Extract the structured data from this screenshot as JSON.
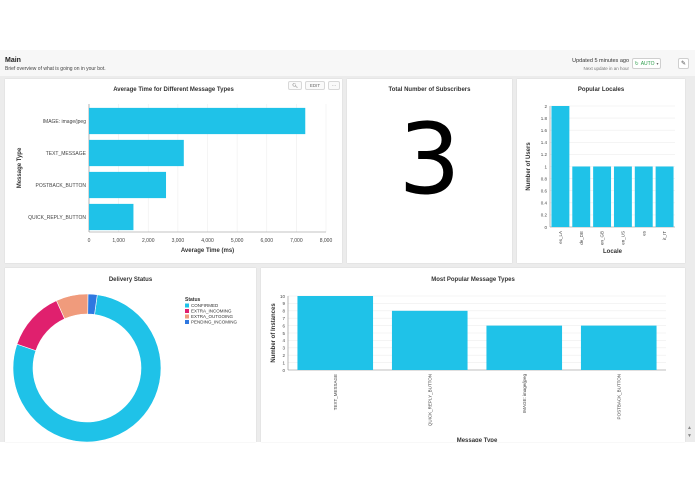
{
  "header": {
    "title": "Main",
    "subtitle": "Brief overview of what is going on in your bot.",
    "updated": "Updated 5 minutes ago",
    "next_update": "Next update in an hour",
    "auto_label": "AUTO"
  },
  "colors": {
    "bar": "#1fc2e8",
    "confirmed": "#1fc2e8",
    "extra_incoming": "#e0206e",
    "extra_outgoing": "#f09b7c",
    "pending_incoming": "#2f78e0"
  },
  "toolbar": {
    "edit_label": "EDIT",
    "more_label": "···"
  },
  "panels": {
    "avg_time_title": "Average Time for Different Message Types",
    "subscribers_title": "Total Number of Subscribers",
    "subscribers_value": "3",
    "locales_title": "Popular Locales",
    "delivery_title": "Delivery Status",
    "popular_types_title": "Most Popular Message Types"
  },
  "chart_data": [
    {
      "type": "bar",
      "orientation": "horizontal",
      "title": "Average Time for Different Message Types",
      "categories": [
        "IMAGE: image/jpeg",
        "TEXT_MESSAGE",
        "POSTBACK_BUTTON",
        "QUICK_REPLY_BUTTON"
      ],
      "values": [
        7300,
        3200,
        2600,
        1500
      ],
      "xlabel": "Average Time (ms)",
      "ylabel": "Message Type",
      "xlim": [
        0,
        8000
      ],
      "xticks": [
        "0",
        "1,000",
        "2,000",
        "3,000",
        "4,000",
        "5,000",
        "6,000",
        "7,000",
        "8,000"
      ],
      "grid": true
    },
    {
      "type": "bar",
      "title": "Popular Locales",
      "categories": [
        "es_LA",
        "de_DE",
        "en_GB",
        "en_US",
        "es",
        "it_IT"
      ],
      "values": [
        2,
        1,
        1,
        1,
        1,
        1
      ],
      "xlabel": "Locale",
      "ylabel": "Number of Users",
      "ylim": [
        0,
        2
      ],
      "yticks": [
        "0",
        "0.2",
        "0.4",
        "0.6",
        "0.8",
        "1",
        "1.2",
        "1.4",
        "1.6",
        "1.8",
        "2"
      ],
      "grid": true
    },
    {
      "type": "pie",
      "donut": true,
      "title": "Delivery Status",
      "legend_title": "Status",
      "legend_position": "right",
      "labels": [
        "CONFIRMED",
        "EXTRA_INCOMING",
        "EXTRA_OUTGOING",
        "PENDING_INCOMING"
      ],
      "values": [
        78,
        13,
        7,
        2
      ]
    },
    {
      "type": "bar",
      "title": "Most Popular Message Types",
      "categories": [
        "TEXT_MESSAGE",
        "QUICK_REPLY_BUTTON",
        "IMAGE: image/jpeg",
        "POSTBACK_BUTTON"
      ],
      "values": [
        10,
        8,
        6,
        6
      ],
      "xlabel": "Message Type",
      "ylabel": "Number of Instances",
      "ylim": [
        0,
        10
      ],
      "yticks": [
        "0",
        "1",
        "2",
        "3",
        "4",
        "5",
        "6",
        "7",
        "8",
        "9",
        "10"
      ],
      "grid": true
    }
  ]
}
